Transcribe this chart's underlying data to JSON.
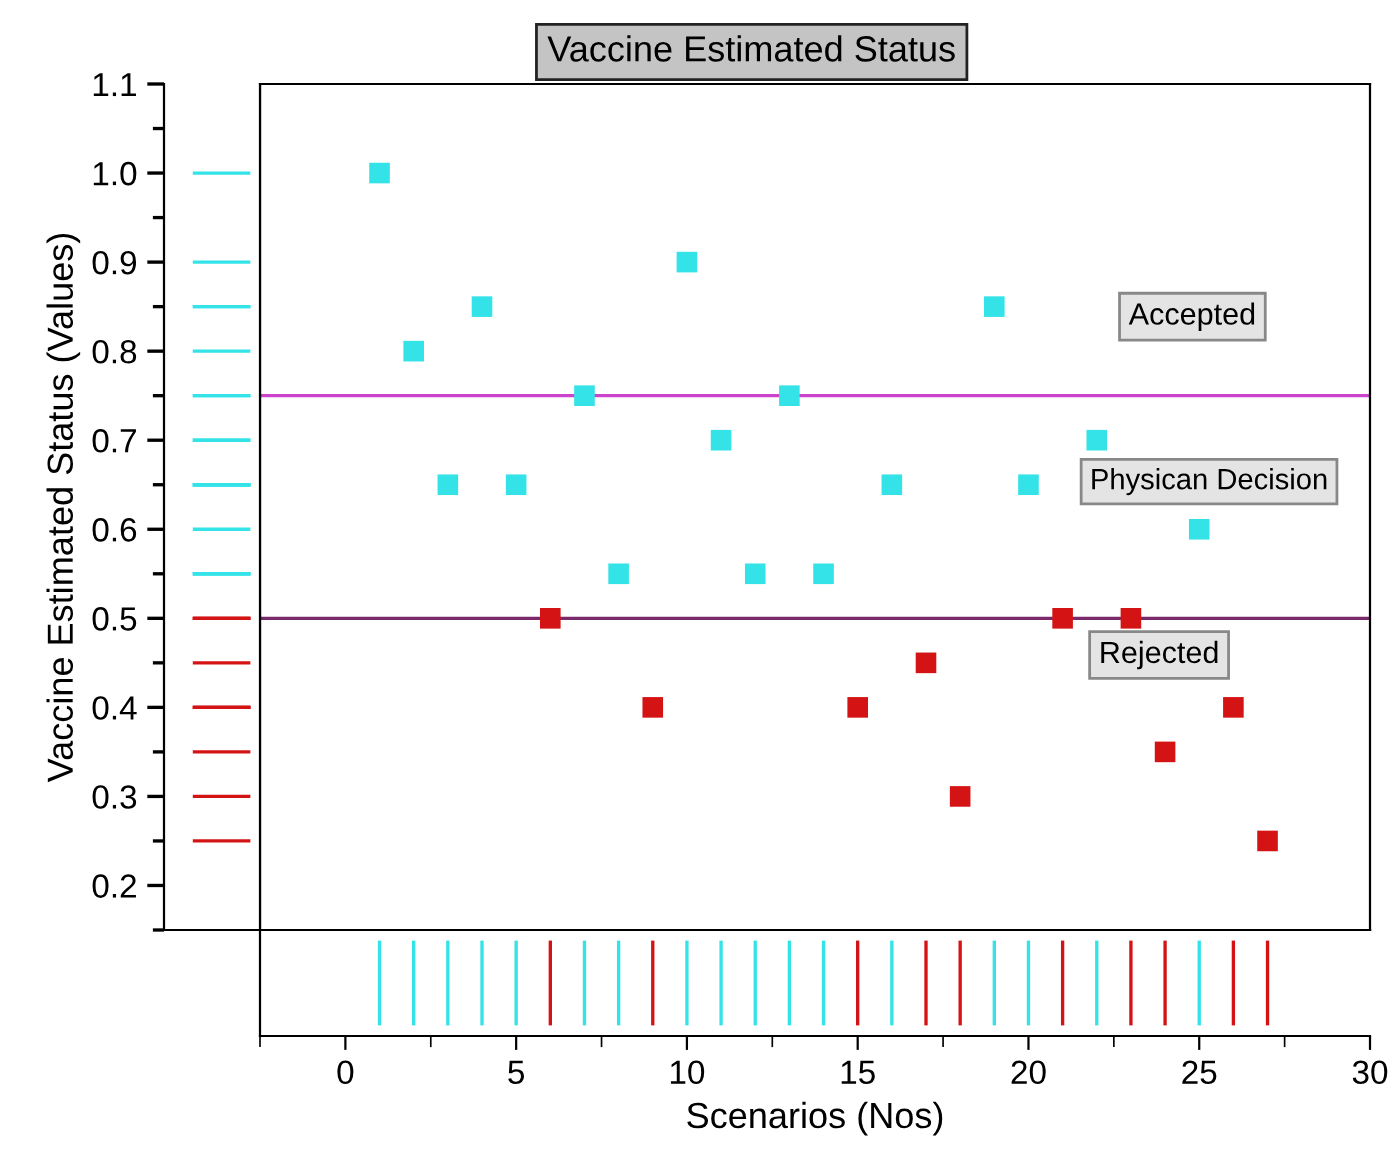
{
  "chart_data": {
    "type": "scatter",
    "title": "Vaccine Estimated Status",
    "xlabel": "Scenarios (Nos)",
    "ylabel": "Vaccine Estimated Status (Values)",
    "series": [
      {
        "color": "#33e3e8",
        "x": [
          1,
          2,
          3,
          4,
          5,
          7,
          8,
          10,
          11,
          12,
          13,
          14,
          16,
          19,
          20,
          22,
          25
        ],
        "values": [
          1.0,
          0.8,
          0.65,
          0.85,
          0.65,
          0.75,
          0.55,
          0.9,
          0.7,
          0.55,
          0.75,
          0.55,
          0.65,
          0.85,
          0.65,
          0.7,
          0.6
        ]
      },
      {
        "color": "#d41414",
        "x": [
          6,
          9,
          15,
          17,
          18,
          21,
          23,
          24,
          26,
          27
        ],
        "values": [
          0.5,
          0.4,
          0.4,
          0.45,
          0.3,
          0.5,
          0.5,
          0.35,
          0.4,
          0.25
        ]
      }
    ],
    "marker": "square",
    "grid": false,
    "legend": false,
    "xlim": [
      -2.5,
      30
    ],
    "xticks": [
      {
        "value": -2.5,
        "label": null
      },
      0,
      {
        "value": 2.5,
        "label": null
      },
      5,
      {
        "value": 7.5,
        "label": null
      },
      10,
      {
        "value": 12.5,
        "label": null
      },
      15,
      {
        "value": 17.5,
        "label": null
      },
      20,
      {
        "value": 22.5,
        "label": null
      },
      25,
      {
        "value": 27.5,
        "label": null
      },
      30
    ],
    "ylim": [
      0.15,
      1.1
    ],
    "yticks": [
      {
        "value": 0.15,
        "label": null
      },
      0.2,
      {
        "value": 0.25,
        "label": null
      },
      0.3,
      {
        "value": 0.35,
        "label": null
      },
      0.4,
      {
        "value": 0.45,
        "label": null
      },
      0.5,
      {
        "value": 0.55,
        "label": null
      },
      0.6,
      {
        "value": 0.65,
        "label": null
      },
      0.7,
      {
        "value": 0.75,
        "label": null
      },
      0.8,
      {
        "value": 0.85,
        "label": null
      },
      0.9,
      {
        "value": 0.95,
        "label": null
      },
      {
        "value": 1.0,
        "label": "1.0"
      },
      {
        "value": 1.05,
        "label": null
      },
      1.1
    ],
    "ref_lines": [
      {
        "axis": "y",
        "value": 0.75,
        "color": "#cc44cc"
      },
      {
        "axis": "y",
        "value": 0.5,
        "color": "#7a2a6a"
      }
    ],
    "annotations": [
      "Accepted",
      "Physican Decision",
      "Rejected"
    ]
  }
}
